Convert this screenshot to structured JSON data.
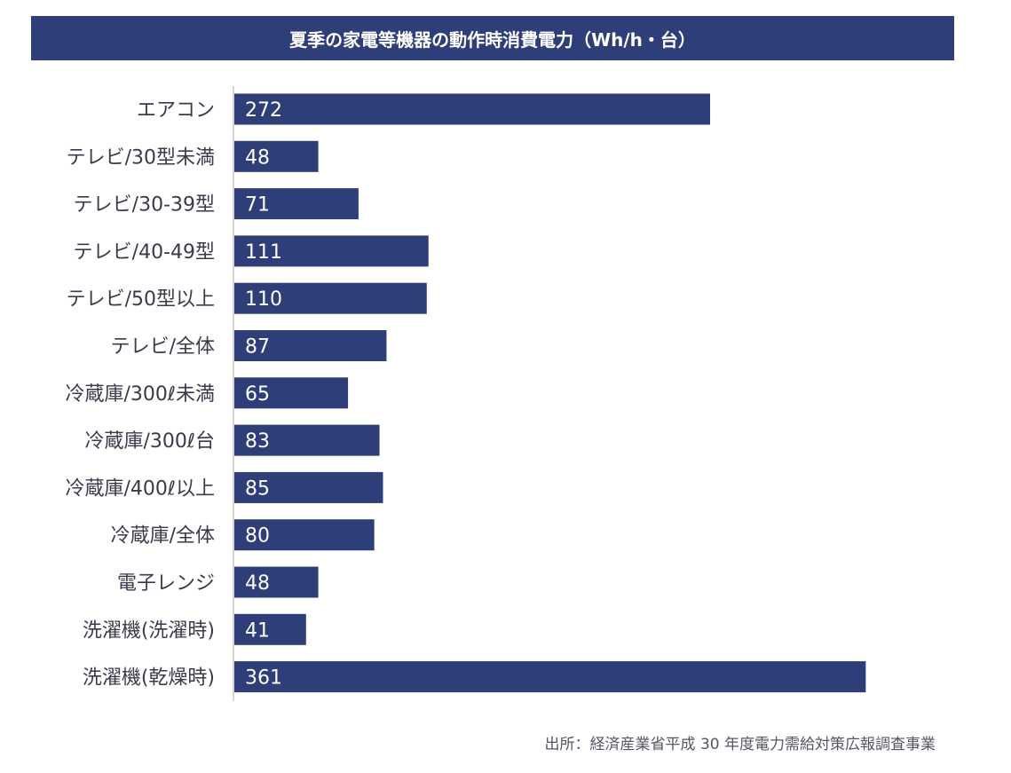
{
  "chart_data": {
    "type": "bar",
    "orientation": "horizontal",
    "title": "夏季の家電等機器の動作時消費電力（Wh/h・台）",
    "categories": [
      "エアコン",
      "テレビ/30型未満",
      "テレビ/30-39型",
      "テレビ/40-49型",
      "テレビ/50型以上",
      "テレビ/全体",
      "冷蔵庫/300ℓ未満",
      "冷蔵庫/300ℓ台",
      "冷蔵庫/400ℓ以上",
      "冷蔵庫/全体",
      "電子レンジ",
      "洗濯機(洗濯時)",
      "洗濯機(乾燥時)"
    ],
    "values": [
      272,
      48,
      71,
      111,
      110,
      87,
      65,
      83,
      85,
      80,
      48,
      41,
      361
    ],
    "xlim": [
      0,
      400
    ],
    "bar_color": "#2e3e78",
    "value_label_color": "#ffffff",
    "grid": false,
    "legend": "none"
  },
  "source": "出所：経済産業省平成 30 年度電力需給対策広報調査事業"
}
